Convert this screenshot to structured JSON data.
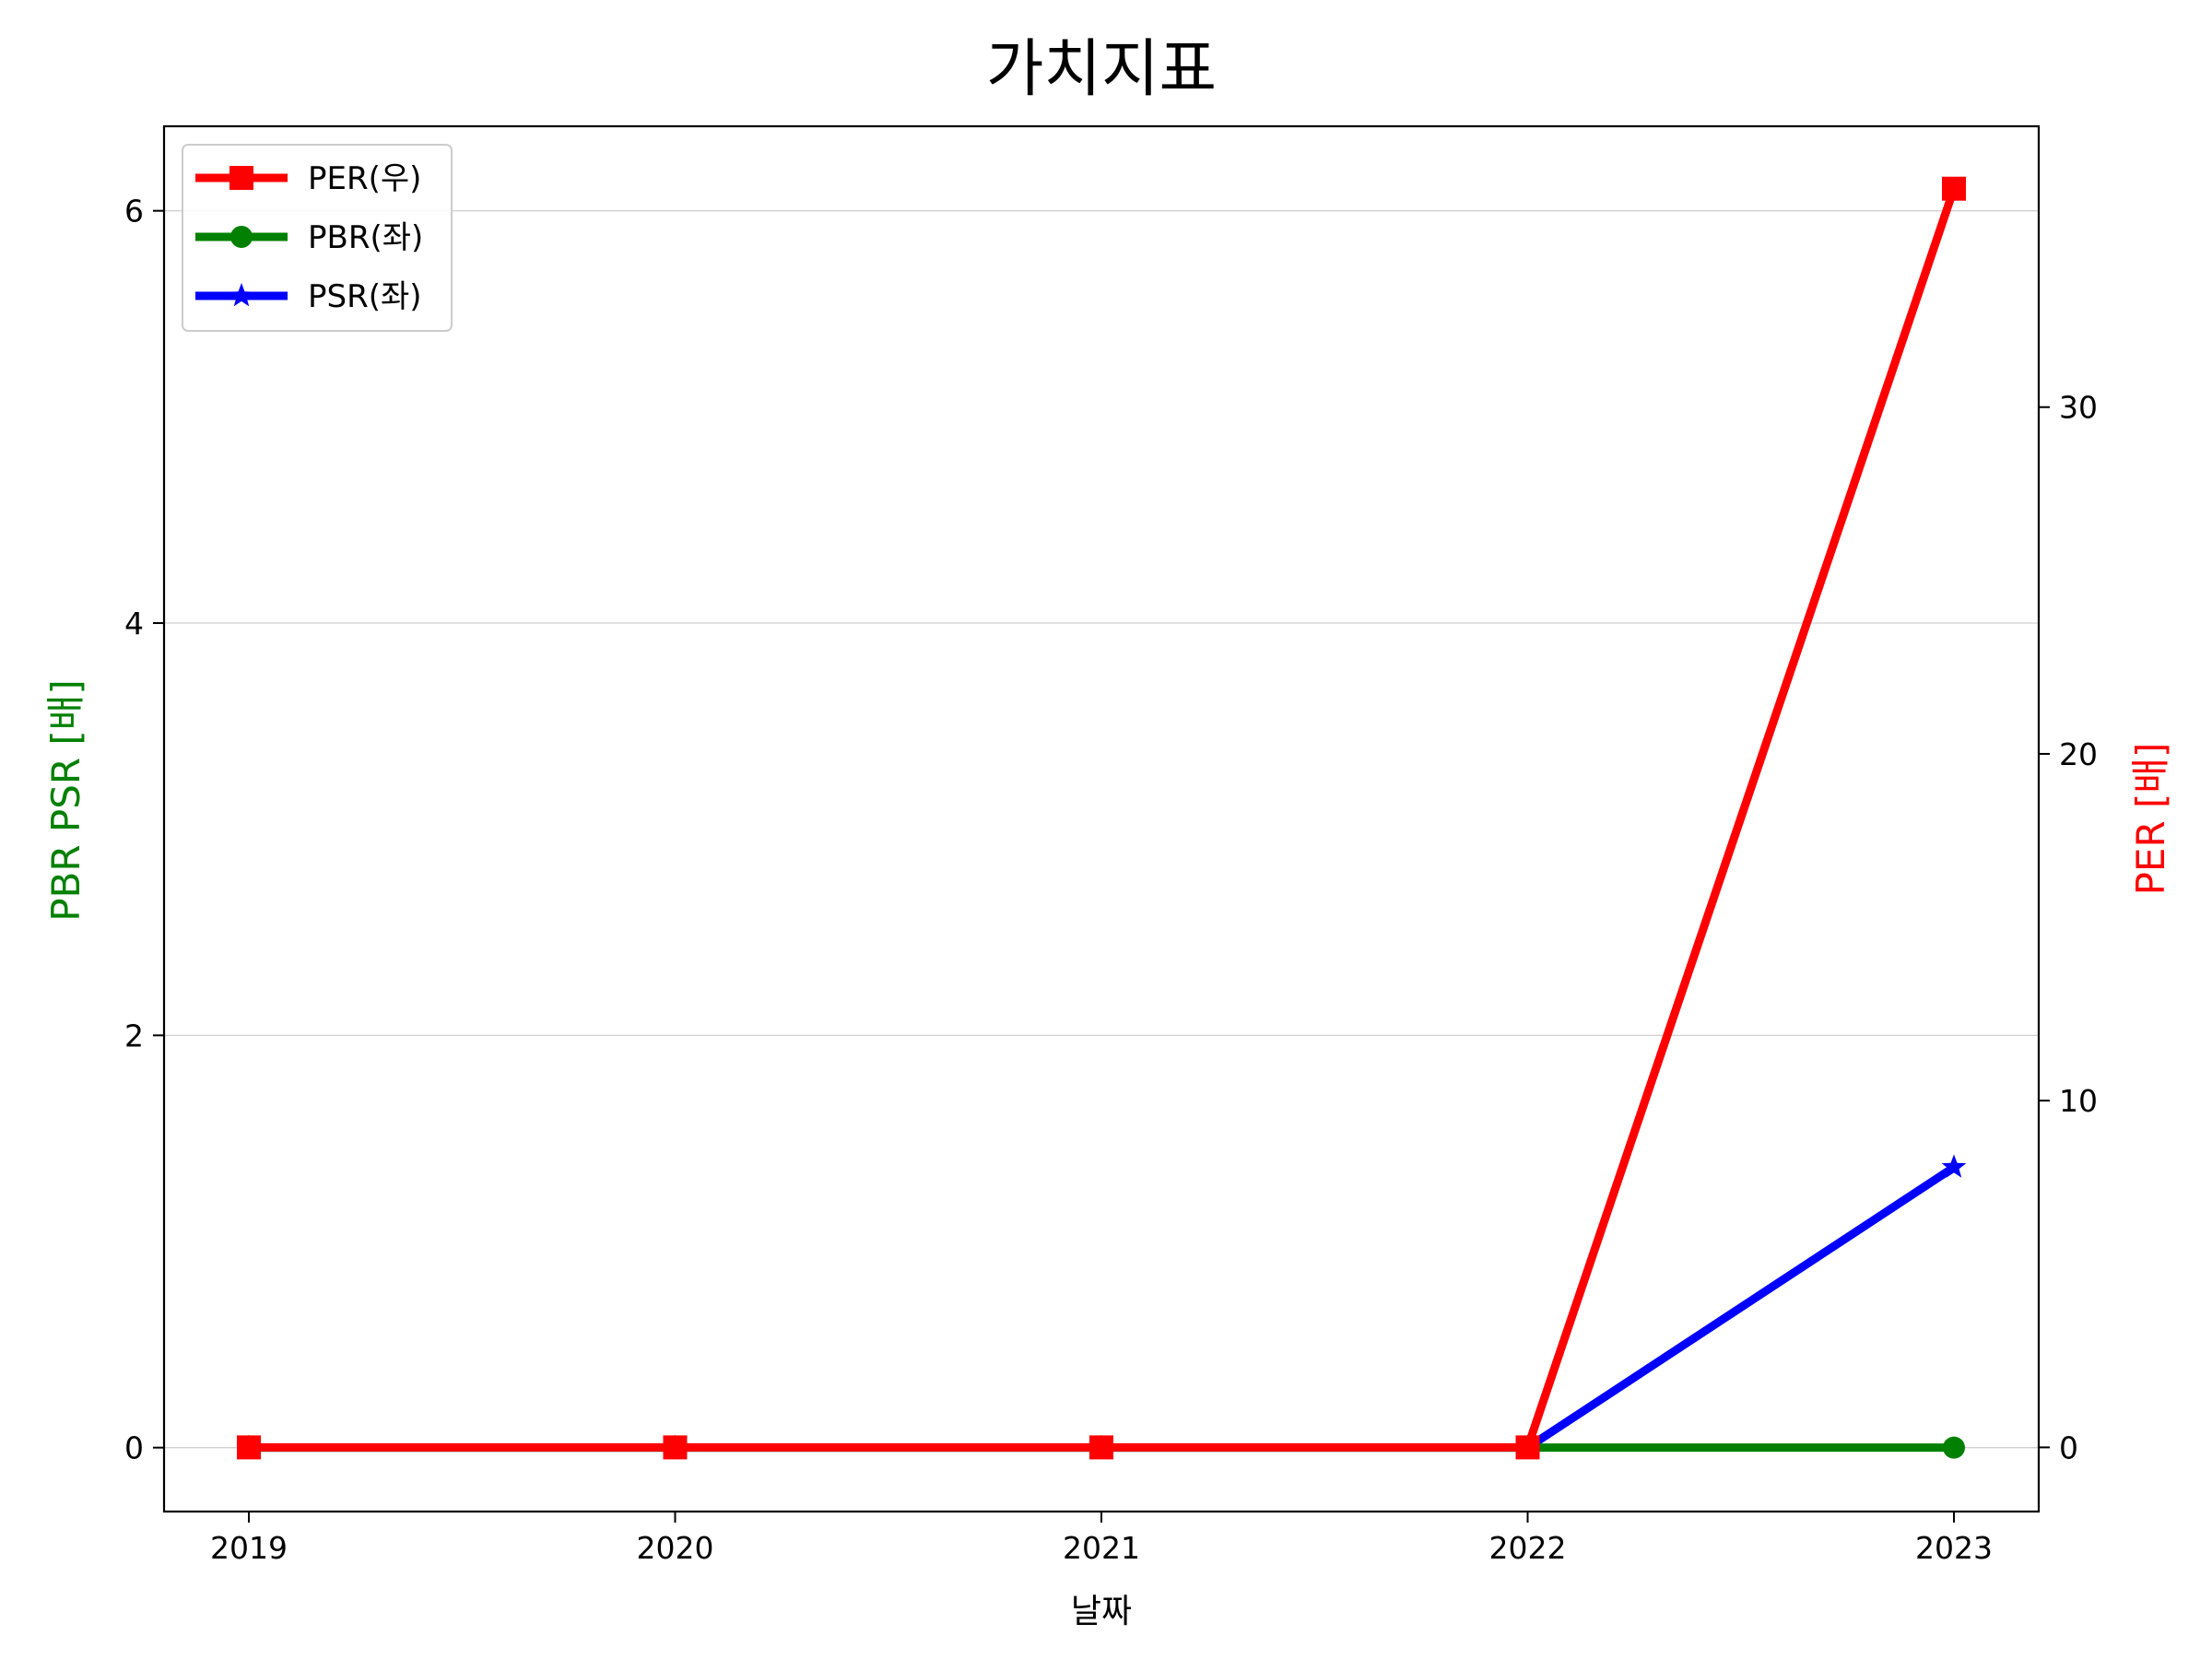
{
  "chart_data": {
    "type": "line",
    "title": "가치지표",
    "xlabel": "날짜",
    "ylabel_left": "PBR PSR [배]",
    "ylabel_right": "PER [배]",
    "ylabel_left_color": "#008000",
    "ylabel_right_color": "#ff0000",
    "x": [
      "2019",
      "2020",
      "2021",
      "2022",
      "2023"
    ],
    "ylim_left": [
      -0.31,
      6.41
    ],
    "ylim_right": [
      -1.85,
      38.1
    ],
    "yticks_left": [
      0,
      2,
      4,
      6
    ],
    "yticks_right": [
      0,
      10,
      20,
      30
    ],
    "grid": "horizontal",
    "legend_position": "top-left",
    "series": [
      {
        "name": "PER(우)",
        "axis": "right",
        "color": "#ff0000",
        "marker": "square",
        "values": [
          0,
          0,
          0,
          0,
          36.3
        ]
      },
      {
        "name": "PBR(좌)",
        "axis": "left",
        "color": "#008000",
        "marker": "circle",
        "values": [
          0,
          0,
          0,
          0,
          0
        ]
      },
      {
        "name": "PSR(좌)",
        "axis": "left",
        "color": "#0000ff",
        "marker": "star",
        "values": [
          0,
          0,
          0,
          0,
          1.36
        ]
      }
    ]
  }
}
